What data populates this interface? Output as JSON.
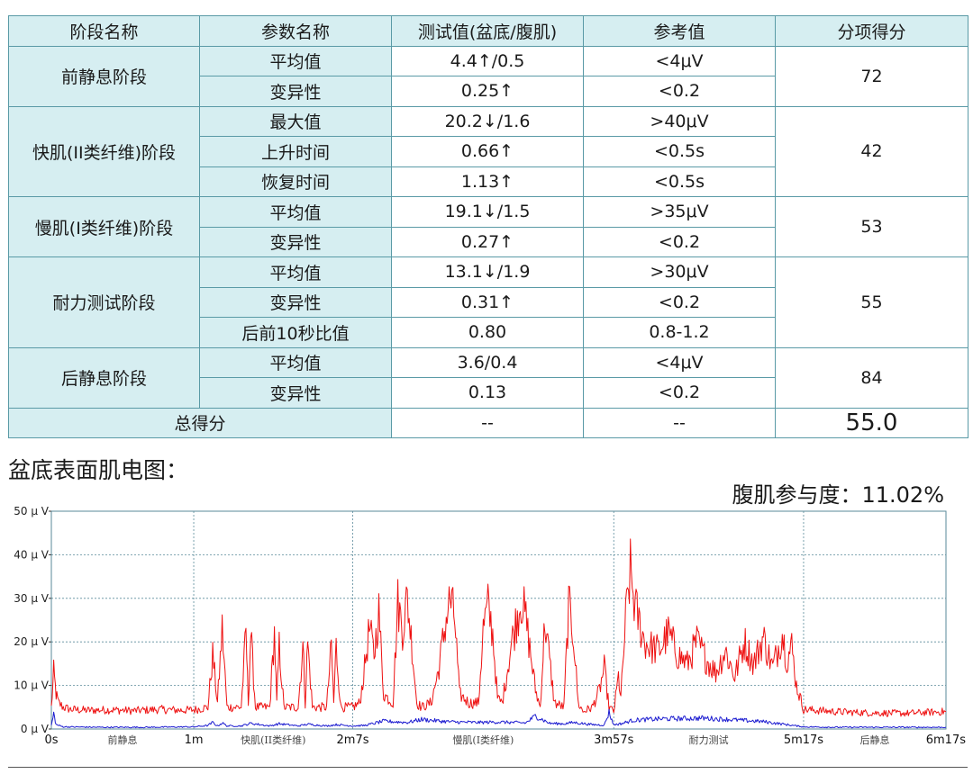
{
  "table": {
    "headers": [
      "阶段名称",
      "参数名称",
      "测试值(盆底/腹肌)",
      "参考值",
      "分项得分"
    ],
    "stages": [
      {
        "name": "前静息阶段",
        "score": "72",
        "rows": [
          {
            "param": "平均值",
            "value": "4.4↑/0.5",
            "ref": "<4μV"
          },
          {
            "param": "变异性",
            "value": "0.25↑",
            "ref": "<0.2"
          }
        ]
      },
      {
        "name": "快肌(II类纤维)阶段",
        "score": "42",
        "rows": [
          {
            "param": "最大值",
            "value": "20.2↓/1.6",
            "ref": ">40μV"
          },
          {
            "param": "上升时间",
            "value": "0.66↑",
            "ref": "<0.5s"
          },
          {
            "param": "恢复时间",
            "value": "1.13↑",
            "ref": "<0.5s"
          }
        ]
      },
      {
        "name": "慢肌(I类纤维)阶段",
        "score": "53",
        "rows": [
          {
            "param": "平均值",
            "value": "19.1↓/1.5",
            "ref": ">35μV"
          },
          {
            "param": "变异性",
            "value": "0.27↑",
            "ref": "<0.2"
          }
        ]
      },
      {
        "name": "耐力测试阶段",
        "score": "55",
        "rows": [
          {
            "param": "平均值",
            "value": "13.1↓/1.9",
            "ref": ">30μV"
          },
          {
            "param": "变异性",
            "value": "0.31↑",
            "ref": "<0.2"
          },
          {
            "param": "后前10秒比值",
            "value": "0.80",
            "ref": "0.8-1.2"
          }
        ]
      },
      {
        "name": "后静息阶段",
        "score": "84",
        "rows": [
          {
            "param": "平均值",
            "value": "3.6/0.4",
            "ref": "<4μV"
          },
          {
            "param": "变异性",
            "value": "0.13",
            "ref": "<0.2"
          }
        ]
      }
    ],
    "total": {
      "label": "总得分",
      "value": "--",
      "ref": "--",
      "score": "55.0"
    }
  },
  "section_title": "盆底表面肌电图：",
  "participation": "腹肌参与度：11.02%",
  "chart_data": {
    "type": "line",
    "x_unit": "s",
    "ylim": [
      0,
      50
    ],
    "yticks": [
      0,
      10,
      20,
      30,
      40,
      50
    ],
    "ytick_labels": [
      "0 μ V",
      "10 μ V",
      "20 μ V",
      "30 μ V",
      "40 μ V",
      "50 μ V"
    ],
    "xlim": [
      0,
      377
    ],
    "xticks": [
      0,
      60,
      127,
      237,
      317,
      377
    ],
    "xtick_labels": [
      "0s",
      "1m",
      "2m7s",
      "3m57s",
      "5m17s",
      "6m17s"
    ],
    "segments": [
      {
        "label": "前静息",
        "start": 0,
        "end": 60
      },
      {
        "label": "快肌(II类纤维)",
        "start": 60,
        "end": 127
      },
      {
        "label": "慢肌(I类纤维)",
        "start": 127,
        "end": 237
      },
      {
        "label": "耐力测试",
        "start": 237,
        "end": 317
      },
      {
        "label": "后静息",
        "start": 317,
        "end": 377
      }
    ],
    "grid": true,
    "colors": {
      "pelvic": "#ee1111",
      "abdominal": "#1a1ad0",
      "grid": "#5a8a9a"
    },
    "series": [
      {
        "key": "pelvic",
        "x": [
          0,
          1,
          2,
          3,
          5,
          8,
          15,
          25,
          35,
          45,
          55,
          60,
          66,
          68,
          70,
          72,
          74,
          80,
          82,
          83,
          84,
          86,
          92,
          94,
          95,
          96,
          98,
          104,
          106,
          107,
          108,
          110,
          116,
          118,
          119,
          120,
          122,
          127,
          130,
          132,
          134,
          136,
          138,
          140,
          144,
          146,
          148,
          150,
          152,
          154,
          156,
          160,
          163,
          166,
          168,
          170,
          172,
          176,
          180,
          182,
          184,
          186,
          188,
          190,
          194,
          198,
          200,
          202,
          204,
          206,
          208,
          212,
          216,
          218,
          220,
          222,
          224,
          228,
          231,
          233,
          235,
          237,
          239,
          240,
          242,
          244,
          246,
          248,
          250,
          252,
          256,
          260,
          264,
          268,
          272,
          276,
          280,
          284,
          288,
          292,
          296,
          300,
          304,
          308,
          310,
          312,
          314,
          317,
          330,
          345,
          360,
          377
        ],
        "y": [
          5,
          13,
          8,
          6,
          5,
          4.5,
          4.3,
          4.4,
          4.2,
          4.5,
          4.3,
          4.4,
          5,
          17,
          6,
          23,
          5,
          5,
          22,
          6,
          22,
          5,
          5,
          22,
          6,
          19,
          5,
          5,
          19,
          6,
          20,
          5,
          5,
          19,
          6,
          19,
          5,
          5,
          6,
          14,
          23,
          17,
          27,
          8,
          6,
          29,
          23,
          30,
          19,
          6,
          5,
          6,
          13,
          24,
          30,
          25,
          8,
          6,
          6,
          23,
          28,
          22,
          7,
          6,
          20,
          30,
          25,
          17,
          9,
          5,
          25,
          6,
          5,
          28,
          22,
          6,
          4,
          5,
          9,
          14,
          5,
          4,
          12,
          7,
          25,
          36,
          28,
          24,
          20,
          19,
          18,
          22,
          17,
          15,
          20,
          16,
          13,
          18,
          12,
          20,
          15,
          21,
          14,
          22,
          16,
          19,
          10,
          4.5,
          4,
          3.7,
          3.6,
          4
        ]
      },
      {
        "key": "abdominal",
        "x": [
          0,
          1,
          2,
          5,
          20,
          40,
          60,
          66,
          68,
          70,
          72,
          74,
          80,
          84,
          92,
          96,
          104,
          108,
          116,
          120,
          127,
          132,
          140,
          150,
          156,
          164,
          170,
          180,
          188,
          200,
          204,
          210,
          216,
          220,
          228,
          233,
          235,
          237,
          240,
          245,
          255,
          265,
          275,
          285,
          300,
          317,
          330,
          350,
          377
        ],
        "y": [
          0.8,
          3.5,
          1,
          0.5,
          0.4,
          0.4,
          0.5,
          0.8,
          1.5,
          0.7,
          1.4,
          0.7,
          0.7,
          1.3,
          0.7,
          1.2,
          0.7,
          1.1,
          0.7,
          1,
          0.7,
          0.8,
          1.8,
          1.5,
          2.2,
          1.8,
          1.6,
          1.5,
          1.6,
          1.4,
          3,
          1.3,
          1.2,
          1.5,
          1,
          0.9,
          3.8,
          1,
          1.2,
          2,
          2.3,
          2.4,
          2.5,
          2.2,
          1.7,
          0.5,
          0.4,
          0.4,
          0.4
        ]
      }
    ]
  }
}
